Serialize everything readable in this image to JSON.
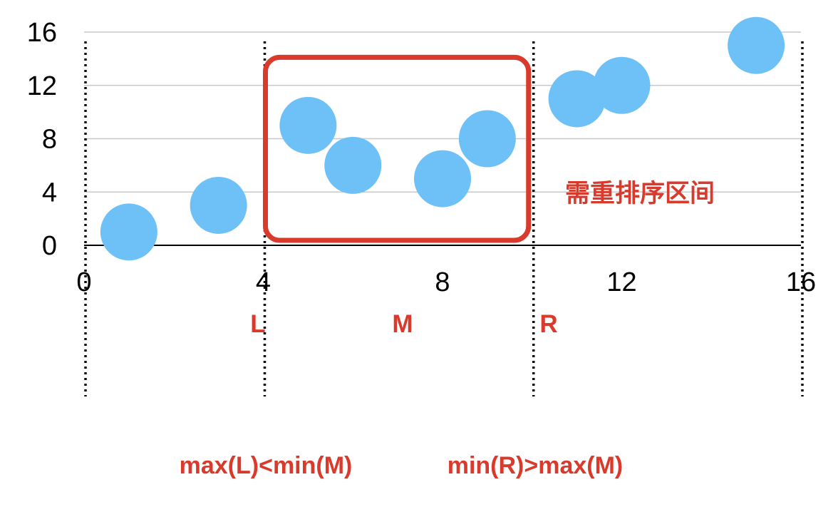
{
  "chart_data": {
    "type": "scatter",
    "x": [
      1,
      3,
      5,
      6,
      8,
      9,
      11,
      12,
      15
    ],
    "y": [
      1,
      3,
      9,
      6,
      5,
      8,
      11,
      12,
      15
    ],
    "xlim": [
      0,
      16
    ],
    "ylim": [
      0,
      16
    ],
    "x_ticks": [
      "0",
      "4",
      "8",
      "12",
      "16"
    ],
    "y_ticks": [
      "0",
      "4",
      "8",
      "12",
      "16"
    ],
    "grid": "horizontal",
    "marker_color": "#6ec1f7",
    "partition_lines_x": [
      0,
      4,
      10,
      16
    ],
    "highlight_box": {
      "x_range": [
        4,
        10
      ],
      "y_range": [
        0,
        14
      ],
      "color": "#d93a2b"
    },
    "annotations": {
      "box_label": "需重排序区间",
      "L": "L",
      "M": "M",
      "R": "R",
      "cond_left": "max(L)<min(M)",
      "cond_right": "min(R)>max(M)"
    },
    "accent_color": "#d93a2b"
  }
}
